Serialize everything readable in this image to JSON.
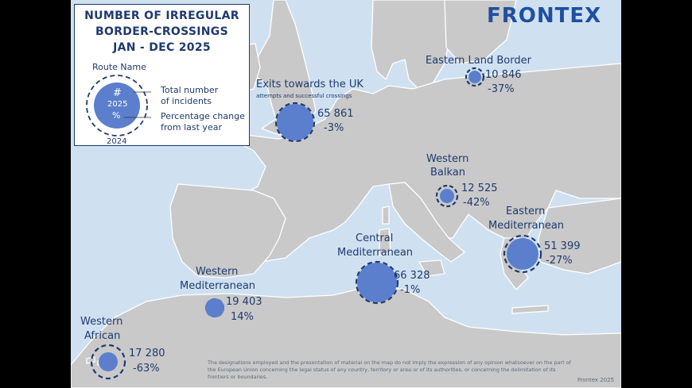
{
  "logo": {
    "text": "FRONTEX",
    "color": "#1f4fa0"
  },
  "legend": {
    "title_lines": [
      "NUMBER OF IRREGULAR",
      "BORDER-CROSSINGS",
      "JAN - DEC 2025"
    ],
    "route_name": "Route Name",
    "circle_symbol": "#",
    "circle_year": "2025",
    "circle_percent": "%",
    "dashed_year": "2024",
    "total_lines": [
      "Total number",
      "of incidents"
    ],
    "change_lines": [
      "Percentage change",
      "from last year"
    ]
  },
  "routes": [
    {
      "name_lines": [
        "Exits towards the UK"
      ],
      "subtitle": "attempts and successful crossings",
      "count": "65 861",
      "change": "-3%"
    },
    {
      "name_lines": [
        "Eastern Land Border"
      ],
      "count": "10 846",
      "change": "-37%"
    },
    {
      "name_lines": [
        "Western",
        "Balkan"
      ],
      "count": "12 525",
      "change": "-42%"
    },
    {
      "name_lines": [
        "Eastern",
        "Mediterranean"
      ],
      "count": "51 399",
      "change": "-27%"
    },
    {
      "name_lines": [
        "Central",
        "Mediterranean"
      ],
      "count": "66 328",
      "change": "-1%"
    },
    {
      "name_lines": [
        "Western",
        "Mediterranean"
      ],
      "count": "19 403",
      "change": "14%"
    },
    {
      "name_lines": [
        "Western",
        "African"
      ],
      "count": "17 280",
      "change": "-63%"
    }
  ],
  "disclaimer": "The designations employed and the presentation of material on the map do not imply the expression of any opinion whatsoever on the part of the European Union concerning the legal status of any country, territory or area or of its authorities, or concerning the delimitation of its frontiers or boundaries.",
  "copyright": "Frontex 2025",
  "colors": {
    "sea": "#cfe1f1",
    "land": "#c8c8c8",
    "bubble": "#5b7fcc",
    "dash": "#1f3a6e"
  }
}
